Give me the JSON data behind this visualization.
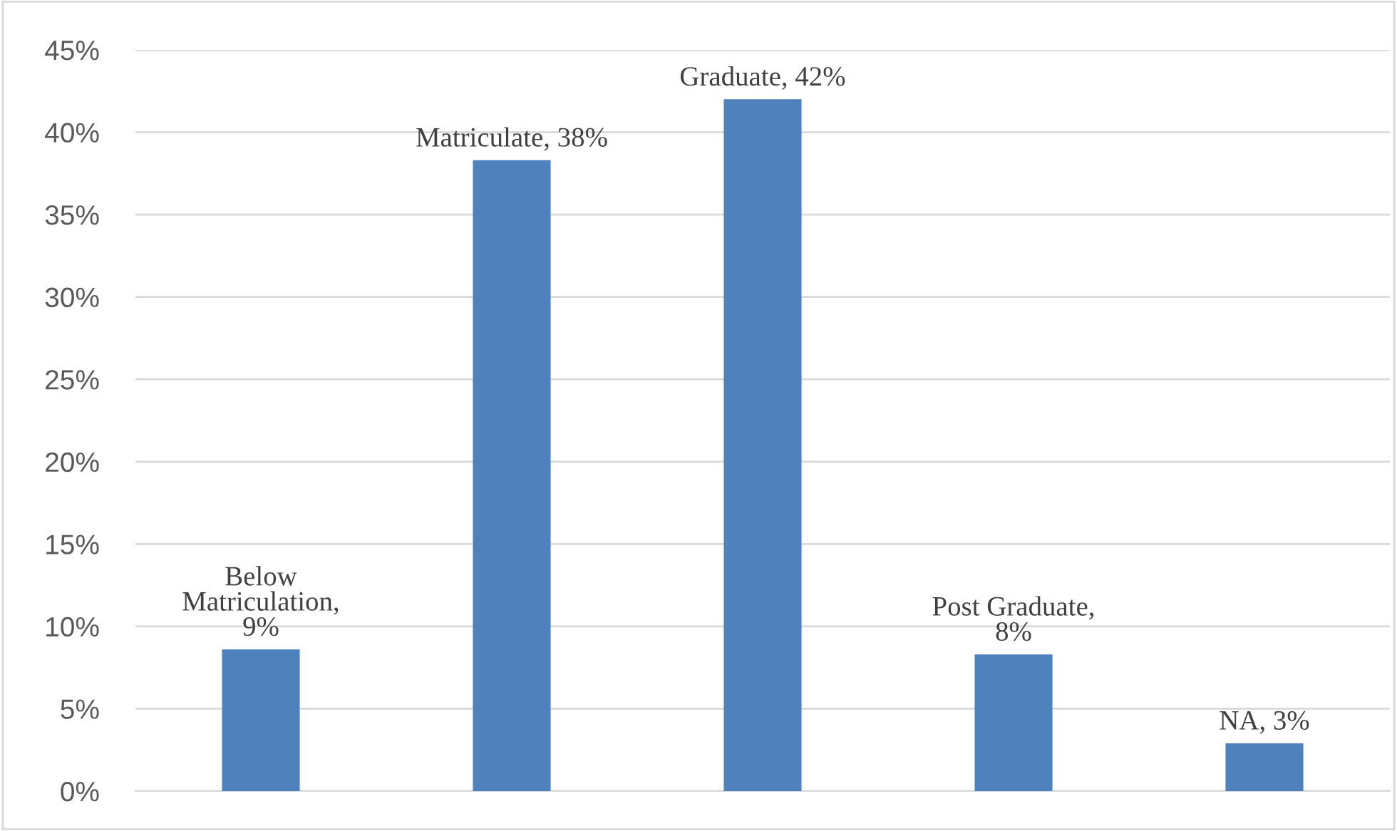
{
  "chart_data": {
    "type": "bar",
    "categories": [
      null,
      null,
      null,
      null,
      null
    ],
    "values": [
      8.6,
      38.3,
      42.0,
      8.3,
      2.9
    ],
    "value_labels": [
      "Below\nMatriculation,\n9%",
      "Matriculate, 38%",
      "Graduate, 42%",
      "Post Graduate,\n8%",
      "NA, 3%"
    ],
    "color": "#4f81bd",
    "ylim": [
      0,
      45
    ],
    "yticks": [
      {
        "value": 0,
        "label": "0%"
      },
      {
        "value": 5,
        "label": "5%"
      },
      {
        "value": 10,
        "label": "10%"
      },
      {
        "value": 15,
        "label": "15%"
      },
      {
        "value": 20,
        "label": "20%"
      },
      {
        "value": 25,
        "label": "25%"
      },
      {
        "value": 30,
        "label": "30%"
      },
      {
        "value": 35,
        "label": "35%"
      },
      {
        "value": 40,
        "label": "40%"
      },
      {
        "value": 45,
        "label": "45%"
      }
    ],
    "grid": "y",
    "tick_labels": "y",
    "legend": false
  }
}
